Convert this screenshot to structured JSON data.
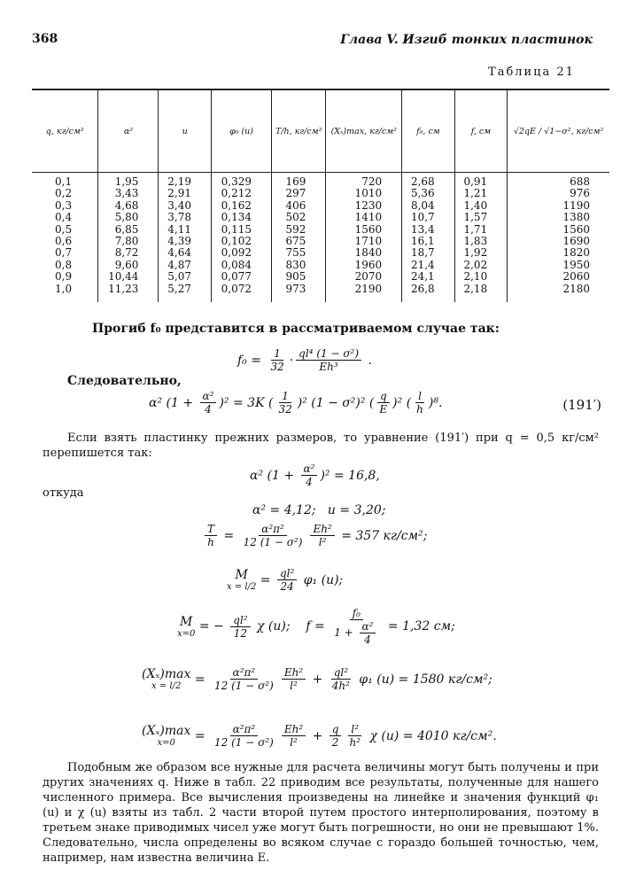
{
  "header": {
    "page_number": "368",
    "chapter": "Глава V. Изгиб тонких пластинок"
  },
  "table": {
    "caption": "Таблица 21",
    "columns": [
      "q, кг/см²",
      "α²",
      "u",
      "φ₀ (u)",
      "T/h, кг/см²",
      "(Xₓ)max, кг/см²",
      "f₀, см",
      "f, см",
      "√2qE / √1−σ², кг/см²"
    ],
    "rows": [
      [
        "0,1",
        "1,95",
        "2,19",
        "0,329",
        "169",
        "720",
        "2,68",
        "0,91",
        "688"
      ],
      [
        "0,2",
        "3,43",
        "2,91",
        "0,212",
        "297",
        "1010",
        "5,36",
        "1,21",
        "976"
      ],
      [
        "0,3",
        "4,68",
        "3,40",
        "0,162",
        "406",
        "1230",
        "8,04",
        "1,40",
        "1190"
      ],
      [
        "0,4",
        "5,80",
        "3,78",
        "0,134",
        "502",
        "1410",
        "10,7",
        "1,57",
        "1380"
      ],
      [
        "0,5",
        "6,85",
        "4,11",
        "0,115",
        "592",
        "1560",
        "13,4",
        "1,71",
        "1560"
      ],
      [
        "0,6",
        "7,80",
        "4,39",
        "0,102",
        "675",
        "1710",
        "16,1",
        "1,83",
        "1690"
      ],
      [
        "0,7",
        "8,72",
        "4,64",
        "0,092",
        "755",
        "1840",
        "18,7",
        "1,92",
        "1820"
      ],
      [
        "0,8",
        "9,60",
        "4,87",
        "0,084",
        "830",
        "1960",
        "21,4",
        "2,02",
        "1950"
      ],
      [
        "0,9",
        "10,44",
        "5,07",
        "0,077",
        "905",
        "2070",
        "24,1",
        "2,10",
        "2060"
      ],
      [
        "1,0",
        "11,23",
        "5,27",
        "0,072",
        "973",
        "2190",
        "26,8",
        "2,18",
        "2180"
      ]
    ]
  },
  "text": {
    "p1": "Прогиб f₀ представится в рассматриваемом случае так:",
    "p2": "Следовательно,",
    "eq_tag": "(191′)",
    "p3": "Если взять пластинку прежних размеров, то уравнение (191′) при q = 0,5 кг/см² перепишется так:",
    "p4": "откуда",
    "p5": "Подобным же образом все нужные для расчета величины могут быть получены и при других значениях q. Ниже в табл. 22 приводим все результаты, полученные для нашего численного примера. Все вычисления произведены на линейке и значения функций φ₁ (u) и χ (u) взяты из табл. 2 части второй путем простого интерполирования, поэтому в третьем знаке приводимых чисел уже могут быть погрешности, но они не превышают 1%. Следовательно, числа определены во всяком случае с гораздо большей точностью, чем, например, нам известна величина E."
  },
  "formulas": [
    [
      "f₀ = ",
      {
        "n": [
          "1"
        ],
        "d": [
          "32"
        ]
      },
      "·",
      {
        "n": [
          "ql⁴ (1 − σ²)"
        ],
        "d": [
          "Eh³"
        ]
      },
      " ."
    ],
    [
      "α² (1 + ",
      {
        "n": [
          "α²"
        ],
        "d": [
          "4"
        ]
      },
      ")² = 3K (",
      {
        "n": [
          "1"
        ],
        "d": [
          "32"
        ]
      },
      ")² (1 − σ²)² (",
      {
        "n": [
          "q"
        ],
        "d": [
          "E"
        ]
      },
      ")² (",
      {
        "n": [
          "l"
        ],
        "d": [
          "h"
        ]
      },
      ")⁸."
    ],
    [
      "α² (1 + ",
      {
        "n": [
          "α²"
        ],
        "d": [
          "4"
        ]
      },
      ")² = 16,8,"
    ],
    [
      "α² = 4,12;   u = 3,20;"
    ],
    [
      {
        "n": [
          "T"
        ],
        "d": [
          "h"
        ]
      },
      " = ",
      {
        "n": [
          "α²π²"
        ],
        "d": [
          "12 (1 − σ²)"
        ]
      },
      {
        "n": [
          "Eh²"
        ],
        "d": [
          "l²"
        ]
      },
      " = 357 кг/см²;"
    ],
    [
      {
        "b": "M",
        "u": "x = l/2"
      },
      " = ",
      {
        "n": [
          "ql²"
        ],
        "d": [
          "24"
        ]
      },
      " φ₁ (u);"
    ],
    [
      {
        "b": "M",
        "u": "x=0"
      },
      " = − ",
      {
        "n": [
          "ql²"
        ],
        "d": [
          "12"
        ]
      },
      " χ (u);    f = ",
      {
        "n": [
          "f₀"
        ],
        "d": [
          "1 + ",
          {
            "n": [
              "α²"
            ],
            "d": [
              "4"
            ]
          }
        ]
      },
      " = 1,32 см;"
    ],
    [
      {
        "b": "(Xₓ)max",
        "u": "x = l/2"
      },
      " = ",
      {
        "n": [
          "α²π²"
        ],
        "d": [
          "12 (1 − σ²)"
        ]
      },
      {
        "n": [
          "Eh²"
        ],
        "d": [
          "l²"
        ]
      },
      " + ",
      {
        "n": [
          "ql²"
        ],
        "d": [
          "4h²"
        ]
      },
      " φ₁ (u) = 1580 кг/см²;"
    ],
    [
      {
        "b": "(Xₓ)max",
        "u": "x=0"
      },
      " = ",
      {
        "n": [
          "α²π²"
        ],
        "d": [
          "12 (1 − σ²)"
        ]
      },
      {
        "n": [
          "Eh²"
        ],
        "d": [
          "l²"
        ]
      },
      " + ",
      {
        "n": [
          "q"
        ],
        "d": [
          "2"
        ]
      },
      {
        "n": [
          "l²"
        ],
        "d": [
          "h²"
        ]
      },
      " χ (u) = 4010 кг/см²."
    ]
  ]
}
